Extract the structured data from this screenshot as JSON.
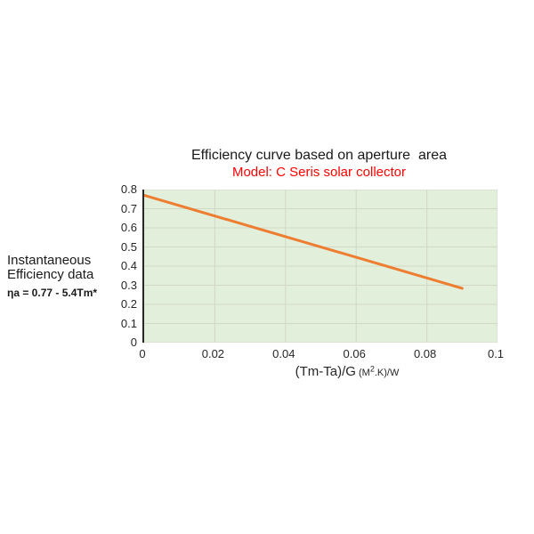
{
  "page": {
    "background": "#ffffff"
  },
  "header": {
    "title": "Efficiency curve based on aperture  area",
    "title_color": "#1a1a1a",
    "subtitle": "Model: C Seris solar collector",
    "subtitle_color": "#ff0000"
  },
  "side_note": {
    "line1": "Instantaneous",
    "line2": "Efficiency data",
    "equation": "ηa = 0.77 - 5.4Tm*"
  },
  "chart_data": {
    "type": "line",
    "title": "Efficiency curve based on aperture  area",
    "subtitle": "Model: C Seris solar collector",
    "xlabel_main": "(Tm-Ta)/G",
    "xlabel_unit": {
      "prefix": " (M",
      "sup": "2",
      "suffix": ".K)/W"
    },
    "ylabel": "",
    "xlim": [
      0,
      0.1
    ],
    "ylim": [
      0,
      0.8
    ],
    "x_ticks": [
      0,
      0.02,
      0.04,
      0.06,
      0.08,
      0.1
    ],
    "x_tick_labels": [
      "0",
      "0.02",
      "0.04",
      "0.06",
      "0.08",
      "0.1"
    ],
    "y_ticks": [
      0,
      0.1,
      0.2,
      0.3,
      0.4,
      0.5,
      0.6,
      0.7,
      0.8
    ],
    "y_tick_labels": [
      "0",
      "0.1",
      "0.2",
      "0.3",
      "0.4",
      "0.5",
      "0.6",
      "0.7",
      "0.8"
    ],
    "grid": true,
    "legend": "none",
    "plot_bg_color": "#e2efda",
    "grid_color": "#d2d8c8",
    "axis_color": "#262626",
    "series": [
      {
        "name": "instantaneous-efficiency",
        "equation": "ηa = 0.77 - 5.4Tm*",
        "color": "#ed7d31",
        "x": [
          0,
          0.09
        ],
        "y": [
          0.77,
          0.284
        ]
      }
    ]
  }
}
